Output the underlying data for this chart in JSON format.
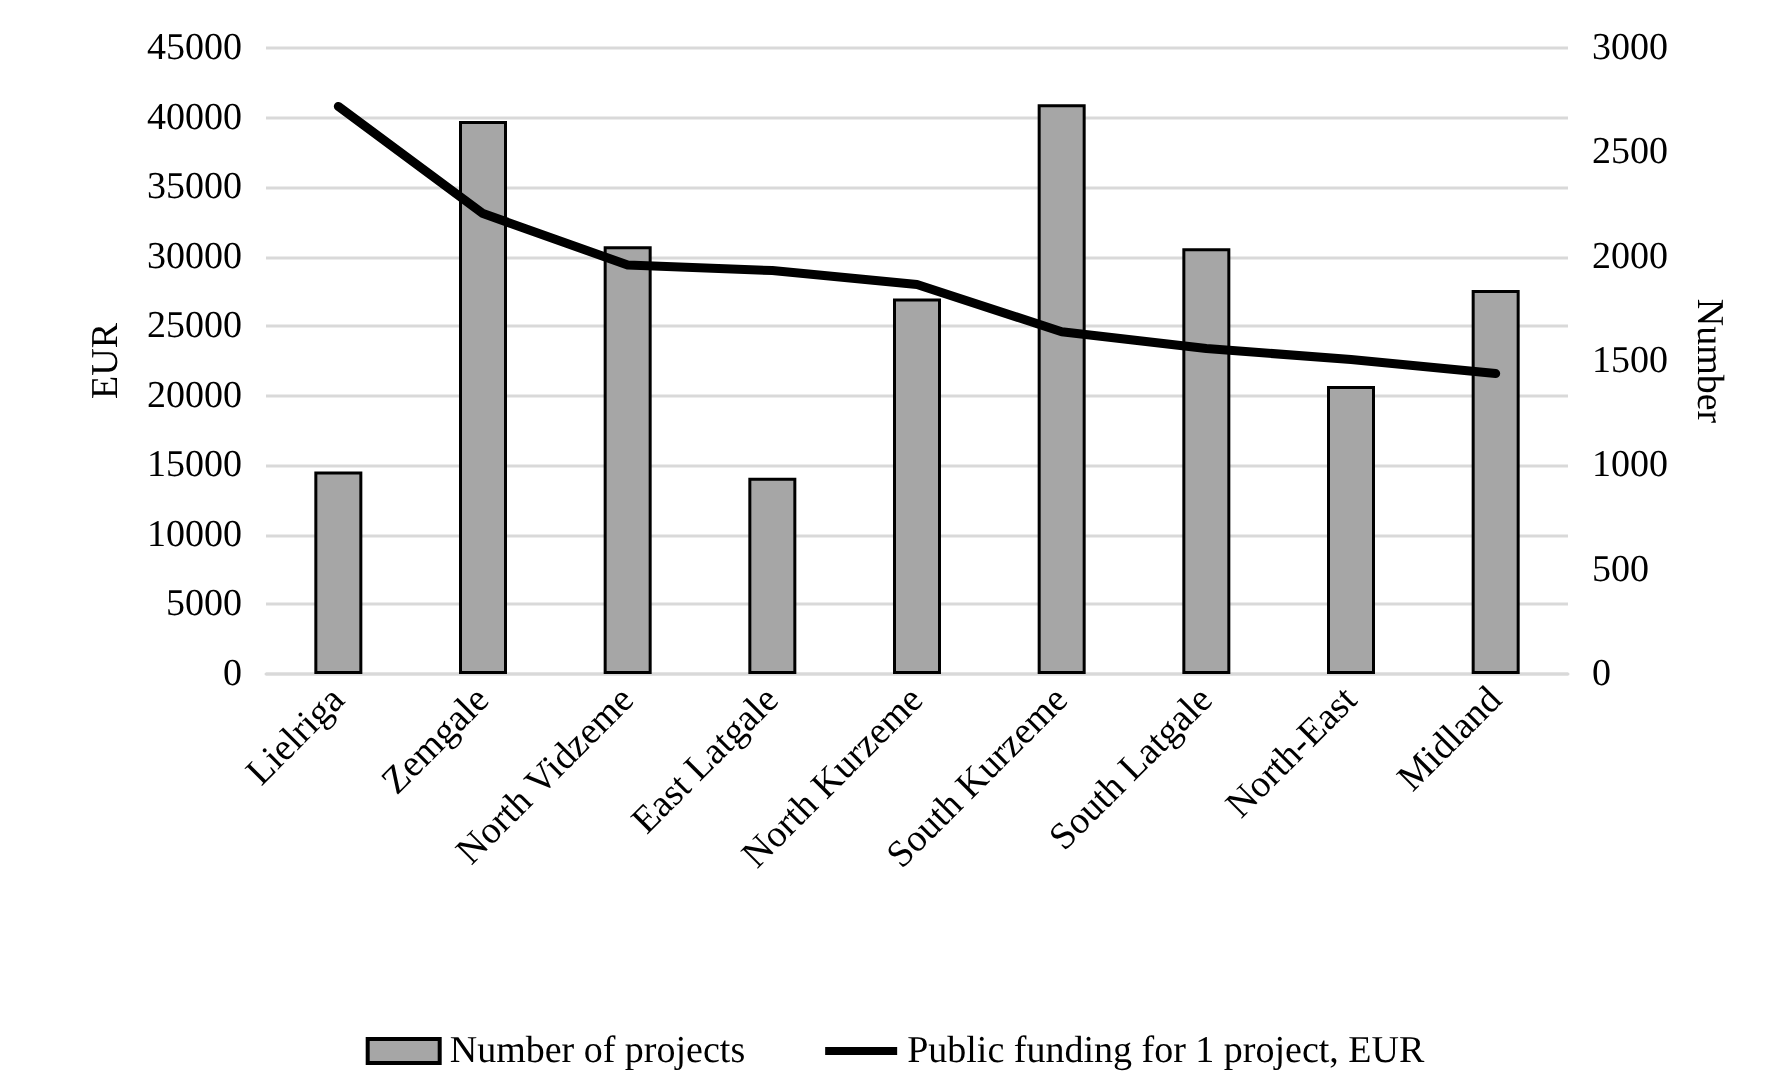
{
  "chart_data": {
    "type": "bar",
    "ylabel": "EUR",
    "y2label": "Number",
    "categories": [
      "Lielriga",
      "Zemgale",
      "North Vidzeme",
      "East Latgale",
      "North Kurzeme",
      "South Kurzeme",
      "South Latgale",
      "North-East",
      "Midland"
    ],
    "series": [
      {
        "name": "Number of projects",
        "axis": "y2",
        "color": "#a6a6a6",
        "values": [
          970,
          2650,
          2050,
          940,
          1800,
          2730,
          2040,
          1380,
          1840
        ]
      },
      {
        "name": "Public funding for 1 project, EUR",
        "type": "line",
        "axis": "y",
        "color": "#000000",
        "values": [
          40800,
          33100,
          29400,
          29000,
          28000,
          24600,
          23400,
          22600,
          21600
        ]
      }
    ],
    "ylim": [
      0,
      45000
    ],
    "yticks": [
      0,
      5000,
      10000,
      15000,
      20000,
      25000,
      30000,
      35000,
      40000,
      45000
    ],
    "y2lim": [
      0,
      3000
    ],
    "y2ticks": [
      0,
      500,
      1000,
      1500,
      2000,
      2500,
      3000
    ],
    "grid": "y",
    "legend": "bottom",
    "marker": "none",
    "line_style": "solid"
  }
}
